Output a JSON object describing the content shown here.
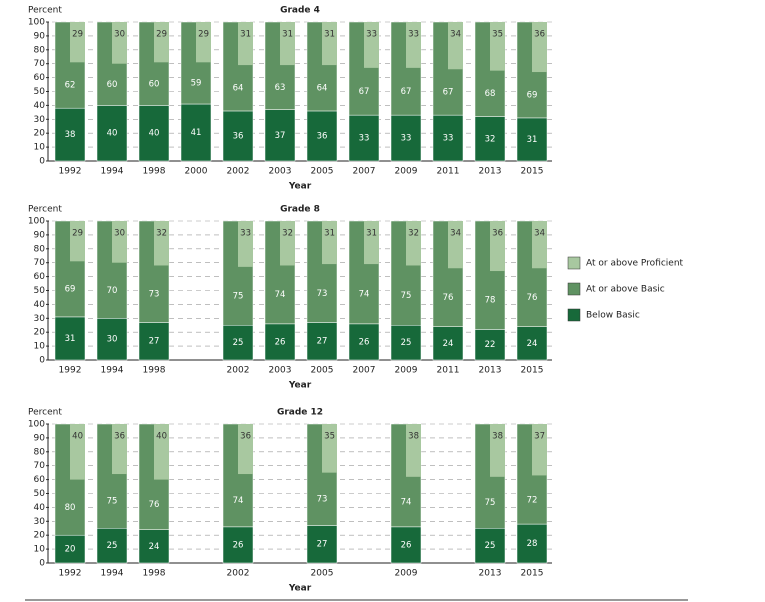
{
  "chart_data": [
    {
      "type": "bar",
      "title": "Grade 4",
      "y_label": "Percent",
      "x_label": "Year",
      "categories": [
        "1992",
        "1994",
        "1998",
        "2000",
        "2002",
        "2003",
        "2005",
        "2007",
        "2009",
        "2011",
        "2013",
        "2015"
      ],
      "ylim": [
        0,
        100
      ],
      "yticks": [
        0,
        10,
        20,
        30,
        40,
        50,
        60,
        70,
        80,
        90,
        100
      ],
      "series": [
        {
          "color": "#17693a",
          "values": [
            38,
            40,
            40,
            41,
            36,
            37,
            36,
            33,
            33,
            33,
            32,
            31
          ]
        },
        {
          "color": "#5f9262",
          "values": [
            62,
            60,
            60,
            59,
            64,
            63,
            64,
            67,
            67,
            67,
            68,
            69
          ]
        },
        {
          "color": "#a8c8a0",
          "values": [
            29,
            30,
            29,
            29,
            31,
            31,
            31,
            33,
            33,
            34,
            35,
            36
          ]
        }
      ]
    },
    {
      "type": "bar",
      "title": "Grade 8",
      "y_label": "Percent",
      "x_label": "Year",
      "categories": [
        "1992",
        "1994",
        "1998",
        null,
        "2002",
        "2003",
        "2005",
        "2007",
        "2009",
        "2011",
        "2013",
        "2015"
      ],
      "ylim": [
        0,
        100
      ],
      "yticks": [
        0,
        10,
        20,
        30,
        40,
        50,
        60,
        70,
        80,
        90,
        100
      ],
      "legend": "right",
      "series": [
        {
          "name": "Below Basic",
          "color": "#17693a",
          "values": [
            31,
            30,
            27,
            null,
            25,
            26,
            27,
            26,
            25,
            24,
            22,
            24
          ]
        },
        {
          "name": "At or above Basic",
          "color": "#5f9262",
          "values": [
            69,
            70,
            73,
            null,
            75,
            74,
            73,
            74,
            75,
            76,
            78,
            76
          ]
        },
        {
          "name": "At or above Proficient",
          "color": "#a8c8a0",
          "values": [
            29,
            30,
            32,
            null,
            33,
            32,
            31,
            31,
            32,
            34,
            36,
            34
          ]
        }
      ]
    },
    {
      "type": "bar",
      "title": "Grade 12",
      "y_label": "Percent",
      "x_label": "Year",
      "categories": [
        "1992",
        "1994",
        "1998",
        null,
        "2002",
        null,
        "2005",
        null,
        "2009",
        null,
        "2013",
        "2015"
      ],
      "ylim": [
        0,
        100
      ],
      "yticks": [
        0,
        10,
        20,
        30,
        40,
        50,
        60,
        70,
        80,
        90,
        100
      ],
      "series": [
        {
          "color": "#17693a",
          "values": [
            20,
            25,
            24,
            null,
            26,
            null,
            27,
            null,
            26,
            null,
            25,
            28
          ]
        },
        {
          "color": "#5f9262",
          "values": [
            80,
            75,
            76,
            null,
            74,
            null,
            73,
            null,
            74,
            null,
            75,
            72
          ]
        },
        {
          "color": "#a8c8a0",
          "values": [
            40,
            36,
            40,
            null,
            36,
            null,
            35,
            null,
            38,
            null,
            38,
            37
          ]
        }
      ]
    }
  ]
}
